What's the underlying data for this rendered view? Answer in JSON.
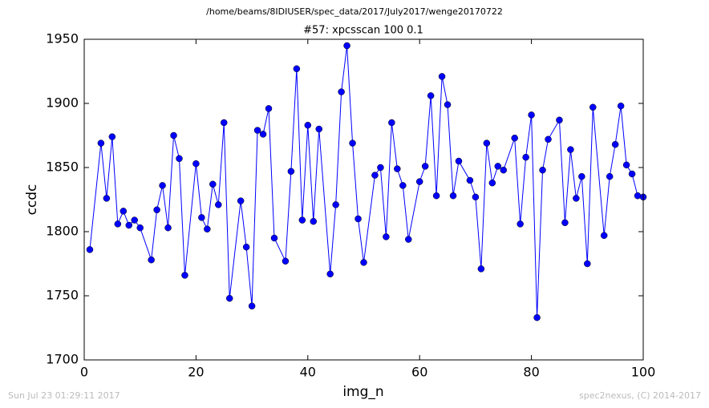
{
  "chart_data": {
    "type": "line",
    "suptitle": "/home/beams/8IDIUSER/spec_data/2017/July2017/wenge20170722",
    "title": "#57: xpcsscan 100 0.1",
    "xlabel": "img_n",
    "ylabel": "ccdc",
    "footer_left": "Sun Jul 23 01:29:11 2017",
    "footer_right": "spec2nexus, (C) 2014-2017",
    "xlim": [
      0,
      100
    ],
    "xticks": [
      0,
      20,
      40,
      60,
      80,
      100
    ],
    "ylim": [
      1700,
      1950
    ],
    "yticks": [
      1700,
      1750,
      1800,
      1850,
      1900,
      1950
    ],
    "grid": false,
    "series": [
      {
        "name": "ccdc",
        "color": "#0000ff",
        "x": [
          1,
          3,
          4,
          5,
          6,
          7,
          8,
          9,
          10,
          12,
          13,
          14,
          15,
          16,
          17,
          18,
          20,
          21,
          22,
          23,
          24,
          25,
          26,
          28,
          29,
          30,
          31,
          32,
          33,
          34,
          36,
          37,
          38,
          39,
          40,
          41,
          42,
          44,
          45,
          46,
          47,
          48,
          49,
          50,
          52,
          53,
          54,
          55,
          56,
          57,
          58,
          60,
          61,
          62,
          63,
          64,
          65,
          66,
          67,
          69,
          70,
          71,
          72,
          73,
          74,
          75,
          77,
          78,
          79,
          80,
          81,
          82,
          83,
          85,
          86,
          87,
          88,
          89,
          90,
          91,
          93,
          94,
          95,
          96,
          97,
          98,
          99,
          100
        ],
        "values": [
          1786,
          1869,
          1826,
          1874,
          1806,
          1816,
          1805,
          1809,
          1803,
          1778,
          1817,
          1836,
          1803,
          1875,
          1857,
          1766,
          1853,
          1811,
          1802,
          1837,
          1821,
          1885,
          1748,
          1824,
          1788,
          1742,
          1879,
          1876,
          1896,
          1795,
          1777,
          1847,
          1927,
          1809,
          1883,
          1808,
          1880,
          1767,
          1821,
          1909,
          1945,
          1869,
          1810,
          1776,
          1844,
          1850,
          1796,
          1885,
          1849,
          1836,
          1794,
          1839,
          1851,
          1906,
          1828,
          1921,
          1899,
          1828,
          1855,
          1840,
          1827,
          1771,
          1869,
          1838,
          1851,
          1848,
          1873,
          1806,
          1858,
          1891,
          1733,
          1848,
          1872,
          1887,
          1807,
          1864,
          1826,
          1843,
          1775,
          1897,
          1797,
          1843,
          1868,
          1898,
          1852,
          1845,
          1828,
          1827
        ]
      }
    ]
  }
}
